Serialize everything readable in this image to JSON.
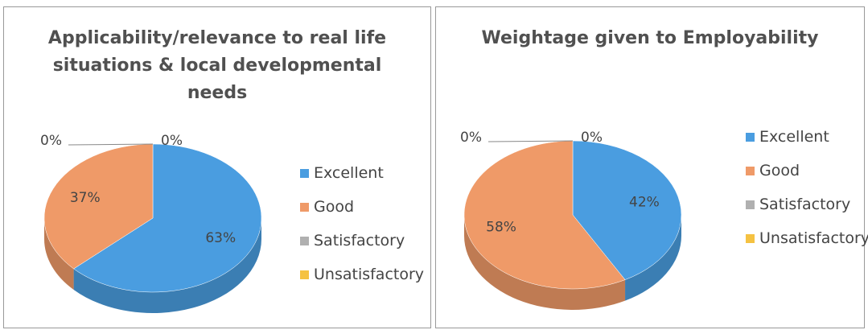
{
  "chart_data": [
    {
      "type": "pie",
      "title": "Applicability/relevance to real life situations & local developmental needs",
      "categories": [
        "Excellent",
        "Good",
        "Satisfactory",
        "Unsatisfactory"
      ],
      "values": [
        63,
        37,
        0,
        0
      ],
      "value_labels": [
        "63%",
        "37%",
        "0%",
        "0%"
      ],
      "colors": [
        "#4a9de0",
        "#ef9a68",
        "#b0b0b0",
        "#f5c242"
      ],
      "legend": "right"
    },
    {
      "type": "pie",
      "title": "Weightage given to Employability",
      "categories": [
        "Excellent",
        "Good",
        "Satisfactory",
        "Unsatisfactory"
      ],
      "values": [
        42,
        58,
        0,
        0
      ],
      "value_labels": [
        "42%",
        "58%",
        "0%",
        "0%"
      ],
      "colors": [
        "#4a9de0",
        "#ef9a68",
        "#b0b0b0",
        "#f5c242"
      ],
      "legend": "right"
    }
  ]
}
